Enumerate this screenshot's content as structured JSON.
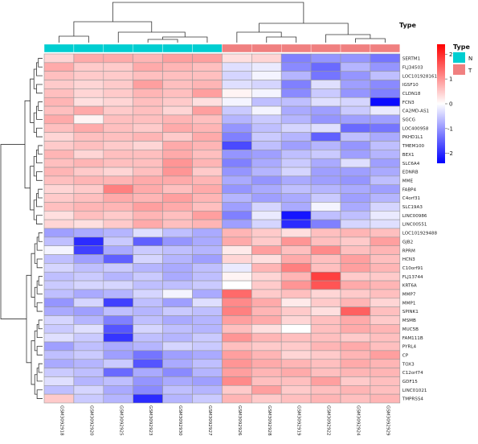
{
  "chart_data": {
    "type": "heatmap",
    "title": "",
    "annotation": {
      "title": "Type",
      "levels": [
        {
          "name": "N",
          "color": "#00CED1"
        },
        {
          "name": "T",
          "color": "#F08080"
        }
      ],
      "column_types": [
        "N",
        "N",
        "N",
        "N",
        "N",
        "N",
        "T",
        "T",
        "T",
        "T",
        "T",
        "T"
      ]
    },
    "color_scale": {
      "low": "#0000FF",
      "mid": "#FFFFFF",
      "high": "#FF0000",
      "min": -2.4,
      "max": 2.4,
      "ticks": [
        {
          "value": 2,
          "label": "2"
        },
        {
          "value": 1,
          "label": "1"
        },
        {
          "value": 0,
          "label": "0"
        },
        {
          "value": -1,
          "label": "-1"
        },
        {
          "value": -2,
          "label": "-2"
        }
      ]
    },
    "columns": [
      "GSM3092918",
      "GSM3092920",
      "GSM3092925",
      "GSM3092923",
      "GSM3092930",
      "GSM3092927",
      "GSM3092926",
      "GSM3092928",
      "GSM3092919",
      "GSM3092922",
      "GSM3092924",
      "GSM3092929"
    ],
    "rows": [
      "SERTM1",
      "FLJ34503",
      "LOC101928161",
      "IGSF10",
      "CLDN18",
      "FCN3",
      "CA2MD-AS1",
      "SGCG",
      "LOC400958",
      "PKHD1L1",
      "TMEM100",
      "BEX1",
      "SLC6A4",
      "EDNRB",
      "MME",
      "FABP4",
      "C4orf31",
      "SLC19A3",
      "LINC00986",
      "LINC00551",
      "LOC101929488",
      "GJB2",
      "RPRM",
      "HCN3",
      "C10orf91",
      "FLJ13744",
      "KRT6A",
      "MMP7",
      "MMP1",
      "SPINK1",
      "MSMB",
      "MUC5B",
      "FAM111B",
      "PYRL4",
      "CP",
      "TOX3",
      "C12orf74",
      "GDF15",
      "LINC01021",
      "TMPRSS4"
    ],
    "values": [
      [
        0.4,
        0.8,
        0.8,
        0.7,
        0.9,
        0.9,
        0.3,
        0.4,
        -1.2,
        -1.0,
        -1.0,
        -1.3
      ],
      [
        0.8,
        0.5,
        0.5,
        0.8,
        0.7,
        0.6,
        -0.3,
        -0.2,
        -1.1,
        -1.4,
        -0.7,
        -1.0
      ],
      [
        0.6,
        0.5,
        0.5,
        0.6,
        0.6,
        0.6,
        -0.4,
        -0.1,
        -0.7,
        -1.3,
        -1.0,
        -0.6
      ],
      [
        0.5,
        0.4,
        0.5,
        0.9,
        0.6,
        0.7,
        -0.3,
        -0.4,
        -1.2,
        -0.3,
        -0.9,
        -1.1
      ],
      [
        0.6,
        0.4,
        0.5,
        0.7,
        0.6,
        0.9,
        0.1,
        -0.1,
        -1.1,
        -0.5,
        -1.0,
        -1.2
      ],
      [
        0.7,
        0.3,
        0.4,
        0.6,
        0.5,
        0.3,
        -0.1,
        -0.6,
        -0.6,
        -0.3,
        -0.4,
        -2.3
      ],
      [
        0.6,
        0.8,
        0.5,
        0.6,
        0.4,
        0.9,
        -0.5,
        -0.1,
        -0.8,
        -0.9,
        -0.5,
        -0.2
      ],
      [
        0.8,
        0.1,
        0.6,
        0.6,
        0.7,
        0.6,
        -0.7,
        -0.5,
        -0.7,
        -1.0,
        -0.9,
        -0.9
      ],
      [
        0.6,
        0.8,
        0.6,
        0.5,
        0.8,
        0.7,
        -1.0,
        -0.6,
        -0.4,
        -0.3,
        -1.4,
        -1.3
      ],
      [
        0.4,
        0.6,
        0.6,
        0.7,
        0.5,
        0.8,
        -1.2,
        -0.5,
        -0.7,
        -1.5,
        -0.6,
        -0.8
      ],
      [
        0.5,
        0.6,
        0.5,
        0.4,
        0.8,
        0.7,
        -1.7,
        -0.6,
        -0.9,
        -0.7,
        -1.0,
        -0.6
      ],
      [
        0.7,
        0.4,
        0.6,
        0.6,
        0.8,
        0.6,
        -1.0,
        -0.9,
        -0.6,
        -0.5,
        -0.9,
        -0.7
      ],
      [
        0.6,
        0.7,
        0.6,
        0.6,
        1.0,
        0.7,
        -1.2,
        -0.8,
        -0.5,
        -0.8,
        -0.3,
        -0.9
      ],
      [
        0.7,
        0.5,
        0.4,
        0.6,
        1.0,
        0.5,
        -1.0,
        -0.7,
        -0.4,
        -0.9,
        -0.9,
        -0.8
      ],
      [
        0.6,
        0.7,
        0.7,
        0.8,
        0.8,
        0.7,
        -0.8,
        -1.0,
        -0.8,
        -0.9,
        -1.0,
        -0.6
      ],
      [
        0.4,
        0.5,
        1.2,
        0.8,
        0.6,
        0.8,
        -1.0,
        -0.8,
        -0.6,
        -0.7,
        -0.8,
        -0.9
      ],
      [
        0.5,
        0.6,
        0.8,
        0.7,
        0.9,
        0.7,
        -0.7,
        -0.9,
        -0.8,
        -0.5,
        -0.9,
        -0.7
      ],
      [
        0.6,
        0.7,
        0.7,
        0.9,
        0.8,
        0.6,
        -0.9,
        -0.4,
        -0.8,
        -0.1,
        -0.8,
        -0.4
      ],
      [
        0.3,
        0.6,
        0.5,
        0.7,
        0.6,
        0.9,
        -1.2,
        -0.2,
        -2.2,
        -0.6,
        -0.6,
        -0.2
      ],
      [
        0.4,
        0.3,
        0.5,
        0.8,
        0.6,
        0.7,
        -0.9,
        -0.4,
        -2.0,
        -1.2,
        -0.4,
        -0.3
      ],
      [
        -0.9,
        -0.8,
        -0.7,
        -0.3,
        -0.6,
        -0.8,
        0.7,
        0.5,
        0.3,
        0.6,
        0.7,
        0.6
      ],
      [
        -0.6,
        -2.0,
        -0.5,
        -1.5,
        -1.0,
        -0.8,
        0.8,
        0.5,
        1.0,
        0.6,
        0.5,
        0.9
      ],
      [
        -0.1,
        -1.8,
        -0.8,
        -0.5,
        -0.6,
        -0.7,
        0.2,
        0.9,
        0.6,
        1.1,
        0.6,
        0.7
      ],
      [
        -0.6,
        -0.9,
        -1.5,
        -0.4,
        -0.7,
        -0.9,
        0.4,
        0.3,
        0.8,
        0.6,
        0.9,
        0.6
      ],
      [
        -0.4,
        -0.6,
        -0.5,
        -0.7,
        -0.8,
        -0.6,
        -0.2,
        0.7,
        1.2,
        0.6,
        0.9,
        0.7
      ],
      [
        -0.6,
        -0.5,
        -0.7,
        -0.5,
        -0.8,
        -0.6,
        0.1,
        0.4,
        0.7,
        1.8,
        0.5,
        0.5
      ],
      [
        -0.5,
        -0.4,
        -0.4,
        -0.6,
        -0.6,
        -0.5,
        0.0,
        0.5,
        1.0,
        1.6,
        0.8,
        0.7
      ],
      [
        -0.6,
        -0.8,
        -0.7,
        -0.4,
        -0.1,
        -0.8,
        1.4,
        0.5,
        0.6,
        0.4,
        0.5,
        0.6
      ],
      [
        -1.0,
        -0.4,
        -1.8,
        -0.6,
        -0.9,
        -0.3,
        1.1,
        0.8,
        0.2,
        0.5,
        0.7,
        0.4
      ],
      [
        -0.8,
        -0.9,
        -0.6,
        -0.7,
        -0.5,
        -0.6,
        1.2,
        0.7,
        0.5,
        0.3,
        1.5,
        0.6
      ],
      [
        -0.4,
        -0.7,
        -1.2,
        -0.6,
        -0.8,
        -0.7,
        0.9,
        0.8,
        0.4,
        0.6,
        0.8,
        0.5
      ],
      [
        -0.5,
        -0.3,
        -1.6,
        -0.4,
        -0.6,
        -0.7,
        0.6,
        0.3,
        0.0,
        0.6,
        0.8,
        0.7
      ],
      [
        -0.3,
        -0.5,
        -1.9,
        -0.6,
        -0.7,
        -0.5,
        1.0,
        0.7,
        0.6,
        0.6,
        0.5,
        0.6
      ],
      [
        -0.9,
        -0.6,
        -0.8,
        -0.7,
        -0.4,
        -0.5,
        0.6,
        0.5,
        0.5,
        0.7,
        0.8,
        0.6
      ],
      [
        -0.6,
        -0.5,
        -0.9,
        -1.3,
        -0.9,
        -0.8,
        0.9,
        0.7,
        0.4,
        0.5,
        0.7,
        0.9
      ],
      [
        -0.8,
        -0.7,
        -0.5,
        -1.6,
        -0.8,
        -0.6,
        1.0,
        0.8,
        0.7,
        0.6,
        0.8,
        0.7
      ],
      [
        -0.5,
        -0.6,
        -1.4,
        -0.8,
        -1.1,
        -0.7,
        0.9,
        0.7,
        0.8,
        0.6,
        0.7,
        0.7
      ],
      [
        -0.3,
        -0.7,
        -0.6,
        -1.0,
        -0.8,
        -0.9,
        1.1,
        0.6,
        0.6,
        0.9,
        0.5,
        0.6
      ],
      [
        -0.6,
        -0.4,
        -0.8,
        -1.1,
        -0.6,
        -0.7,
        0.5,
        0.9,
        0.5,
        0.6,
        0.7,
        0.6
      ],
      [
        0.5,
        -0.5,
        -0.7,
        -2.0,
        -0.7,
        -0.5,
        0.7,
        0.5,
        0.6,
        0.7,
        0.6,
        0.7
      ]
    ]
  }
}
